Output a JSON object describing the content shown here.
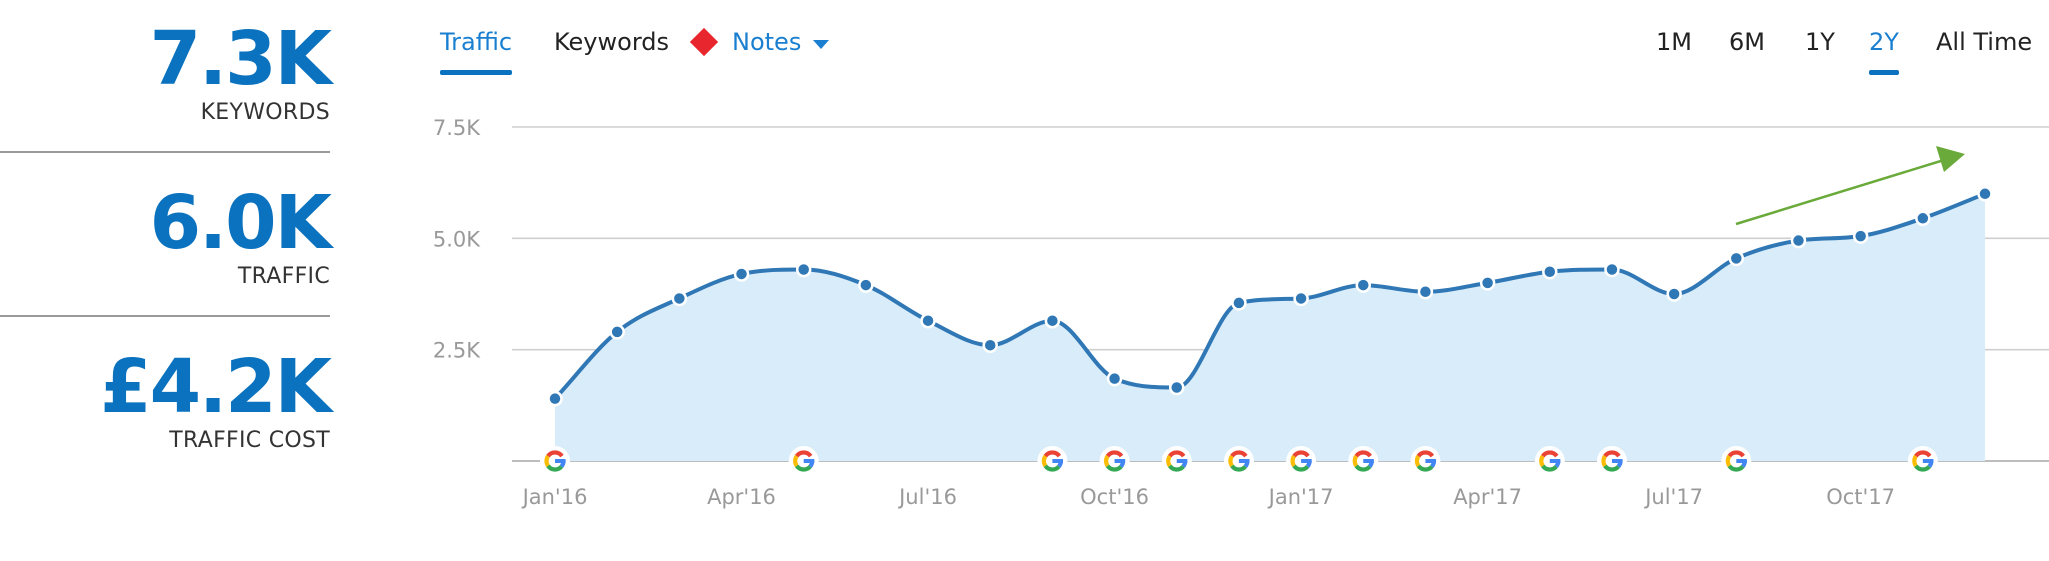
{
  "kpis": [
    {
      "value": "7.3K",
      "label": "KEYWORDS"
    },
    {
      "value": "6.0K",
      "label": "TRAFFIC"
    },
    {
      "value": "£4.2K",
      "label": "TRAFFIC COST"
    }
  ],
  "tabs": {
    "traffic": "Traffic",
    "keywords": "Keywords",
    "notes": "Notes",
    "active": "Traffic"
  },
  "ranges": {
    "items": [
      "1M",
      "6M",
      "1Y",
      "2Y",
      "All Time"
    ],
    "active": "2Y"
  },
  "colors": {
    "accent": "#0a72be",
    "line": "#2f77b5",
    "area": "#d9ecfa",
    "note_marker": "#e8262d",
    "trend_arrow": "#6aaa3a"
  },
  "icons": {
    "note": "diamond-icon",
    "notes_menu": "chevron-down-icon",
    "google_update": "google-g-icon",
    "trend": "arrow-up-right-icon"
  },
  "chart_data": {
    "type": "area",
    "x": [
      "2016-01",
      "2016-02",
      "2016-03",
      "2016-04",
      "2016-05",
      "2016-06",
      "2016-07",
      "2016-08",
      "2016-09",
      "2016-10",
      "2016-11",
      "2016-12",
      "2017-01",
      "2017-02",
      "2017-03",
      "2017-04",
      "2017-05",
      "2017-06",
      "2017-07",
      "2017-08",
      "2017-09",
      "2017-10",
      "2017-11",
      "2017-12"
    ],
    "series": [
      {
        "values": [
          1400,
          2900,
          3650,
          4200,
          4300,
          3950,
          3150,
          2600,
          3150,
          1850,
          1650,
          3550,
          3650,
          3950,
          3800,
          4000,
          4250,
          4300,
          3750,
          4550,
          4950,
          5050,
          5450,
          6000
        ]
      }
    ],
    "y_ticks": [
      "2.5K",
      "5.0K",
      "7.5K"
    ],
    "y_tick_values": [
      2500,
      5000,
      7500
    ],
    "ylim": [
      0,
      7500
    ],
    "x_tick_labels": [
      "Jan'16",
      "Apr'16",
      "Jul'16",
      "Oct'16",
      "Jan'17",
      "Apr'17",
      "Jul'17",
      "Oct'17"
    ],
    "x_tick_months": [
      "2016-01",
      "2016-04",
      "2016-07",
      "2016-10",
      "2017-01",
      "2017-04",
      "2017-07",
      "2017-10"
    ],
    "google_update_markers": [
      "2016-01",
      "2016-05",
      "2016-09",
      "2016-10",
      "2016-11",
      "2016-12",
      "2017-01",
      "2017-02",
      "2017-03",
      "2017-05",
      "2017-06",
      "2017-08",
      "2017-11"
    ],
    "trend": "up",
    "grid": true
  }
}
